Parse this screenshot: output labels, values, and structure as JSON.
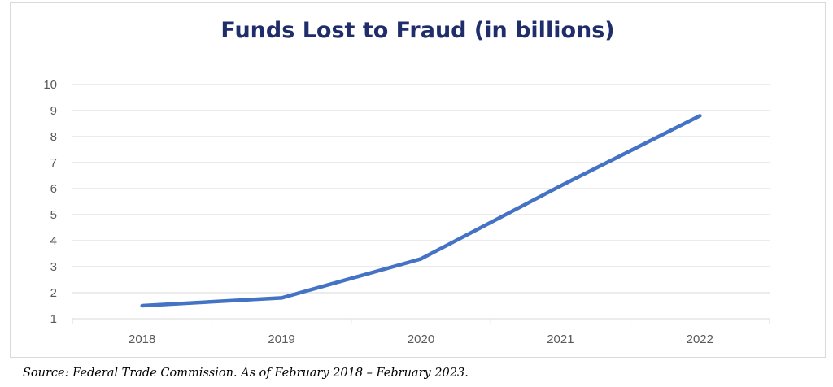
{
  "chart_data": {
    "type": "line",
    "title": "Funds Lost to Fraud (in billions)",
    "xlabel": "",
    "ylabel": "",
    "categories": [
      "2018",
      "2019",
      "2020",
      "2021",
      "2022"
    ],
    "series": [
      {
        "values": [
          1.5,
          1.8,
          3.3,
          6.1,
          8.8
        ]
      }
    ],
    "ylim": [
      1,
      10
    ],
    "yticks": [
      "1",
      "2",
      "3",
      "4",
      "5",
      "6",
      "7",
      "8",
      "9",
      "10"
    ],
    "grid": true,
    "legend": "none",
    "colors": {
      "line": "#4472c4",
      "grid": "#d9d9d9",
      "title": "#1f2d6b",
      "tick_text": "#595959"
    }
  },
  "source": "Source: Federal Trade Commission. As of February 2018 – February 2023."
}
